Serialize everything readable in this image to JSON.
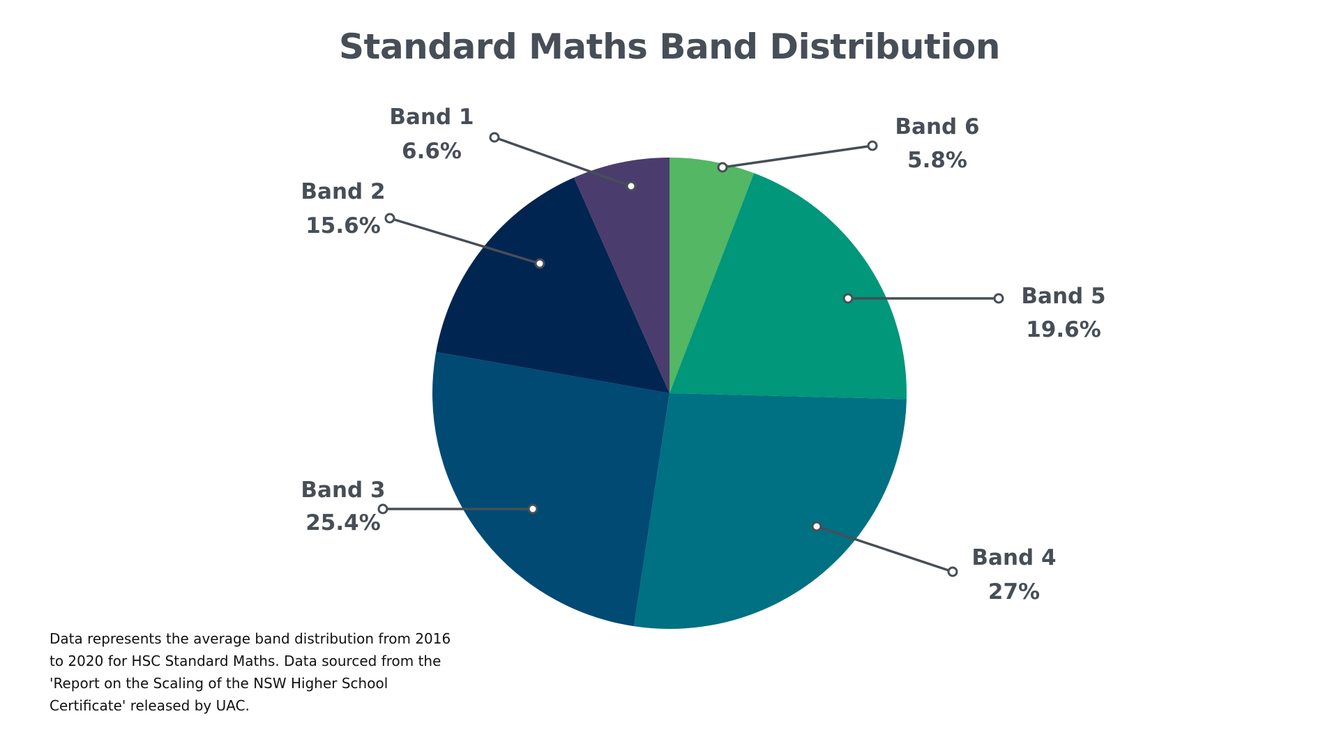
{
  "title": "Standard Maths Band Distribution",
  "footnote": {
    "lines": [
      "Data represents the average band distribution from 2016",
      "to 2020 for HSC Standard Maths. Data sourced from the",
      "'Report on the Scaling of the NSW Higher School",
      "Certificate' released by UAC."
    ]
  },
  "labels": {
    "band6": {
      "name": "Band 6",
      "value": "5.8%"
    },
    "band5": {
      "name": "Band 5",
      "value": "19.6%"
    },
    "band4": {
      "name": "Band 4",
      "value": "27%"
    },
    "band3": {
      "name": "Band 3",
      "value": "25.4%"
    },
    "band2": {
      "name": "Band 2",
      "value": "15.6%"
    },
    "band1": {
      "name": "Band 1",
      "value": "6.6%"
    }
  },
  "colors": {
    "band6": "#53b763",
    "band5": "#00977a",
    "band4": "#007083",
    "band3": "#004a74",
    "band2": "#012551",
    "band1": "#4a3d6d",
    "text": "#474e57",
    "leader": "#474e57"
  },
  "chart_data": {
    "type": "pie",
    "title": "Standard Maths Band Distribution",
    "categories": [
      "Band 6",
      "Band 5",
      "Band 4",
      "Band 3",
      "Band 2",
      "Band 1"
    ],
    "values": [
      5.8,
      19.6,
      27,
      25.4,
      15.6,
      6.6
    ],
    "unit": "%",
    "start_angle": "12 o'clock, clockwise",
    "legend": "none (callout labels with leader lines)",
    "annotation": "Data represents the average band distribution from 2016 to 2020 for HSC Standard Maths. Data sourced from the 'Report on the Scaling of the NSW Higher School Certificate' released by UAC."
  }
}
